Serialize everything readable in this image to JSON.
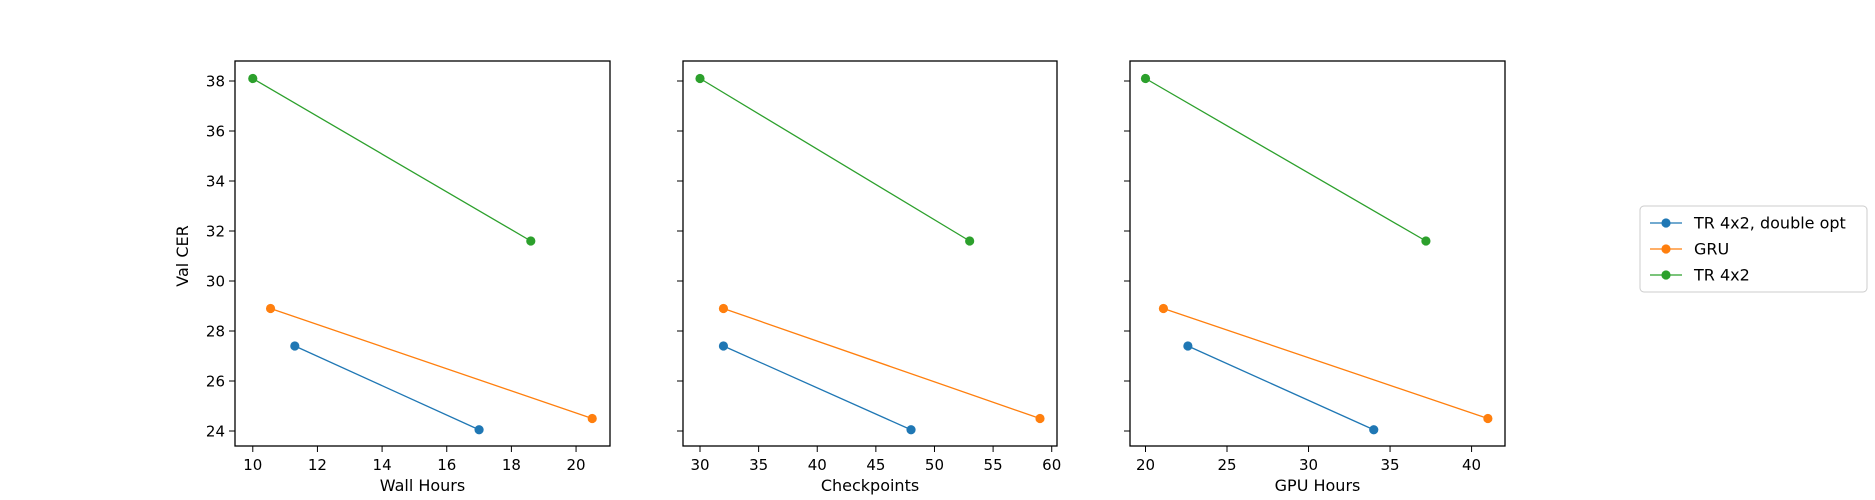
{
  "chart_data": {
    "type": "line",
    "shared_y": true,
    "ylabel": "Val CER",
    "legend_position": "right, outside plot area",
    "series_colors": {
      "TR 4x2, double opt": "#1f77b4",
      "GRU": "#ff7f0e",
      "TR 4x2": "#2ca02c"
    },
    "legend": [
      "TR 4x2, double opt",
      "GRU",
      "TR 4x2"
    ],
    "ylim": [
      23.4,
      38.8
    ],
    "yticks": [
      24,
      26,
      28,
      30,
      32,
      34,
      36,
      38
    ],
    "panels": [
      {
        "xlabel": "Wall Hours",
        "xlim": [
          9.45,
          21.05
        ],
        "xticks": [
          10,
          12,
          14,
          16,
          18,
          20
        ],
        "series": [
          {
            "name": "TR 4x2, double opt",
            "x": [
              11.3,
              17.0
            ],
            "y": [
              27.4,
              24.05
            ]
          },
          {
            "name": "GRU",
            "x": [
              10.55,
              20.5
            ],
            "y": [
              28.9,
              24.5
            ]
          },
          {
            "name": "TR 4x2",
            "x": [
              10.0,
              18.6
            ],
            "y": [
              38.1,
              31.6
            ]
          }
        ]
      },
      {
        "xlabel": "Checkpoints",
        "xlim": [
          28.55,
          60.45
        ],
        "xticks": [
          30,
          35,
          40,
          45,
          50,
          55,
          60
        ],
        "series": [
          {
            "name": "TR 4x2, double opt",
            "x": [
              32,
              48
            ],
            "y": [
              27.4,
              24.05
            ]
          },
          {
            "name": "GRU",
            "x": [
              32,
              59
            ],
            "y": [
              28.9,
              24.5
            ]
          },
          {
            "name": "TR 4x2",
            "x": [
              30,
              53
            ],
            "y": [
              38.1,
              31.6
            ]
          }
        ]
      },
      {
        "xlabel": "GPU Hours",
        "xlim": [
          19.05,
          42.05
        ],
        "xticks": [
          20,
          25,
          30,
          35,
          40
        ],
        "series": [
          {
            "name": "TR 4x2, double opt",
            "x": [
              22.6,
              34.0
            ],
            "y": [
              27.4,
              24.05
            ]
          },
          {
            "name": "GRU",
            "x": [
              21.1,
              41.0
            ],
            "y": [
              28.9,
              24.5
            ]
          },
          {
            "name": "TR 4x2",
            "x": [
              20.0,
              37.2
            ],
            "y": [
              38.1,
              31.6
            ]
          }
        ]
      }
    ]
  }
}
